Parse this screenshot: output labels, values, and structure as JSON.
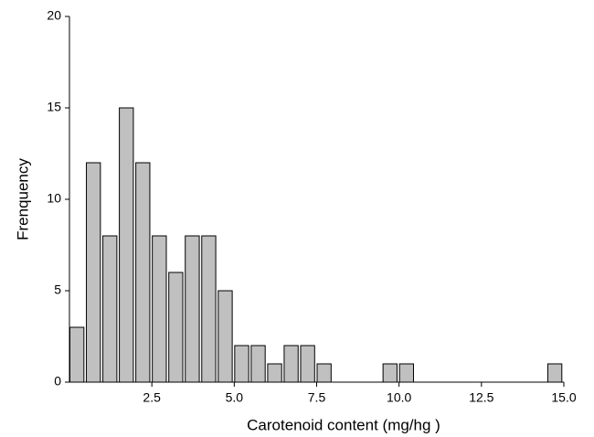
{
  "chart_data": {
    "type": "histogram",
    "x_label": "Carotenoid content (mg/hg )",
    "y_label": "Frenquency",
    "bins": [
      0,
      0.5,
      1,
      1.5,
      2,
      2.5,
      3,
      3.5,
      4,
      4.5,
      5,
      5.5,
      6,
      6.5,
      7,
      7.5,
      8,
      8.5,
      9,
      9.5,
      10,
      10.5,
      11,
      11.5,
      12,
      12.5,
      13,
      13.5,
      14,
      14.5,
      15
    ],
    "counts": [
      3,
      12,
      8,
      15,
      12,
      8,
      6,
      8,
      8,
      5,
      2,
      2,
      1,
      2,
      2,
      1,
      0,
      0,
      0,
      1,
      1,
      0,
      0,
      0,
      0,
      0,
      0,
      0,
      0,
      1
    ],
    "color": "#c0c0c0",
    "xlim": [
      0,
      15
    ],
    "xticks": [
      {
        "value": 2.5,
        "label": "2.5"
      },
      {
        "value": 5,
        "label": "5.0"
      },
      {
        "value": 7.5,
        "label": "7.5"
      },
      {
        "value": 10,
        "label": "10.0"
      },
      {
        "value": 12.5,
        "label": "12.5"
      },
      {
        "value": 15,
        "label": "15.0"
      }
    ],
    "ylim": [
      0,
      20
    ],
    "yticks": [
      0,
      5,
      10,
      15,
      20
    ]
  }
}
